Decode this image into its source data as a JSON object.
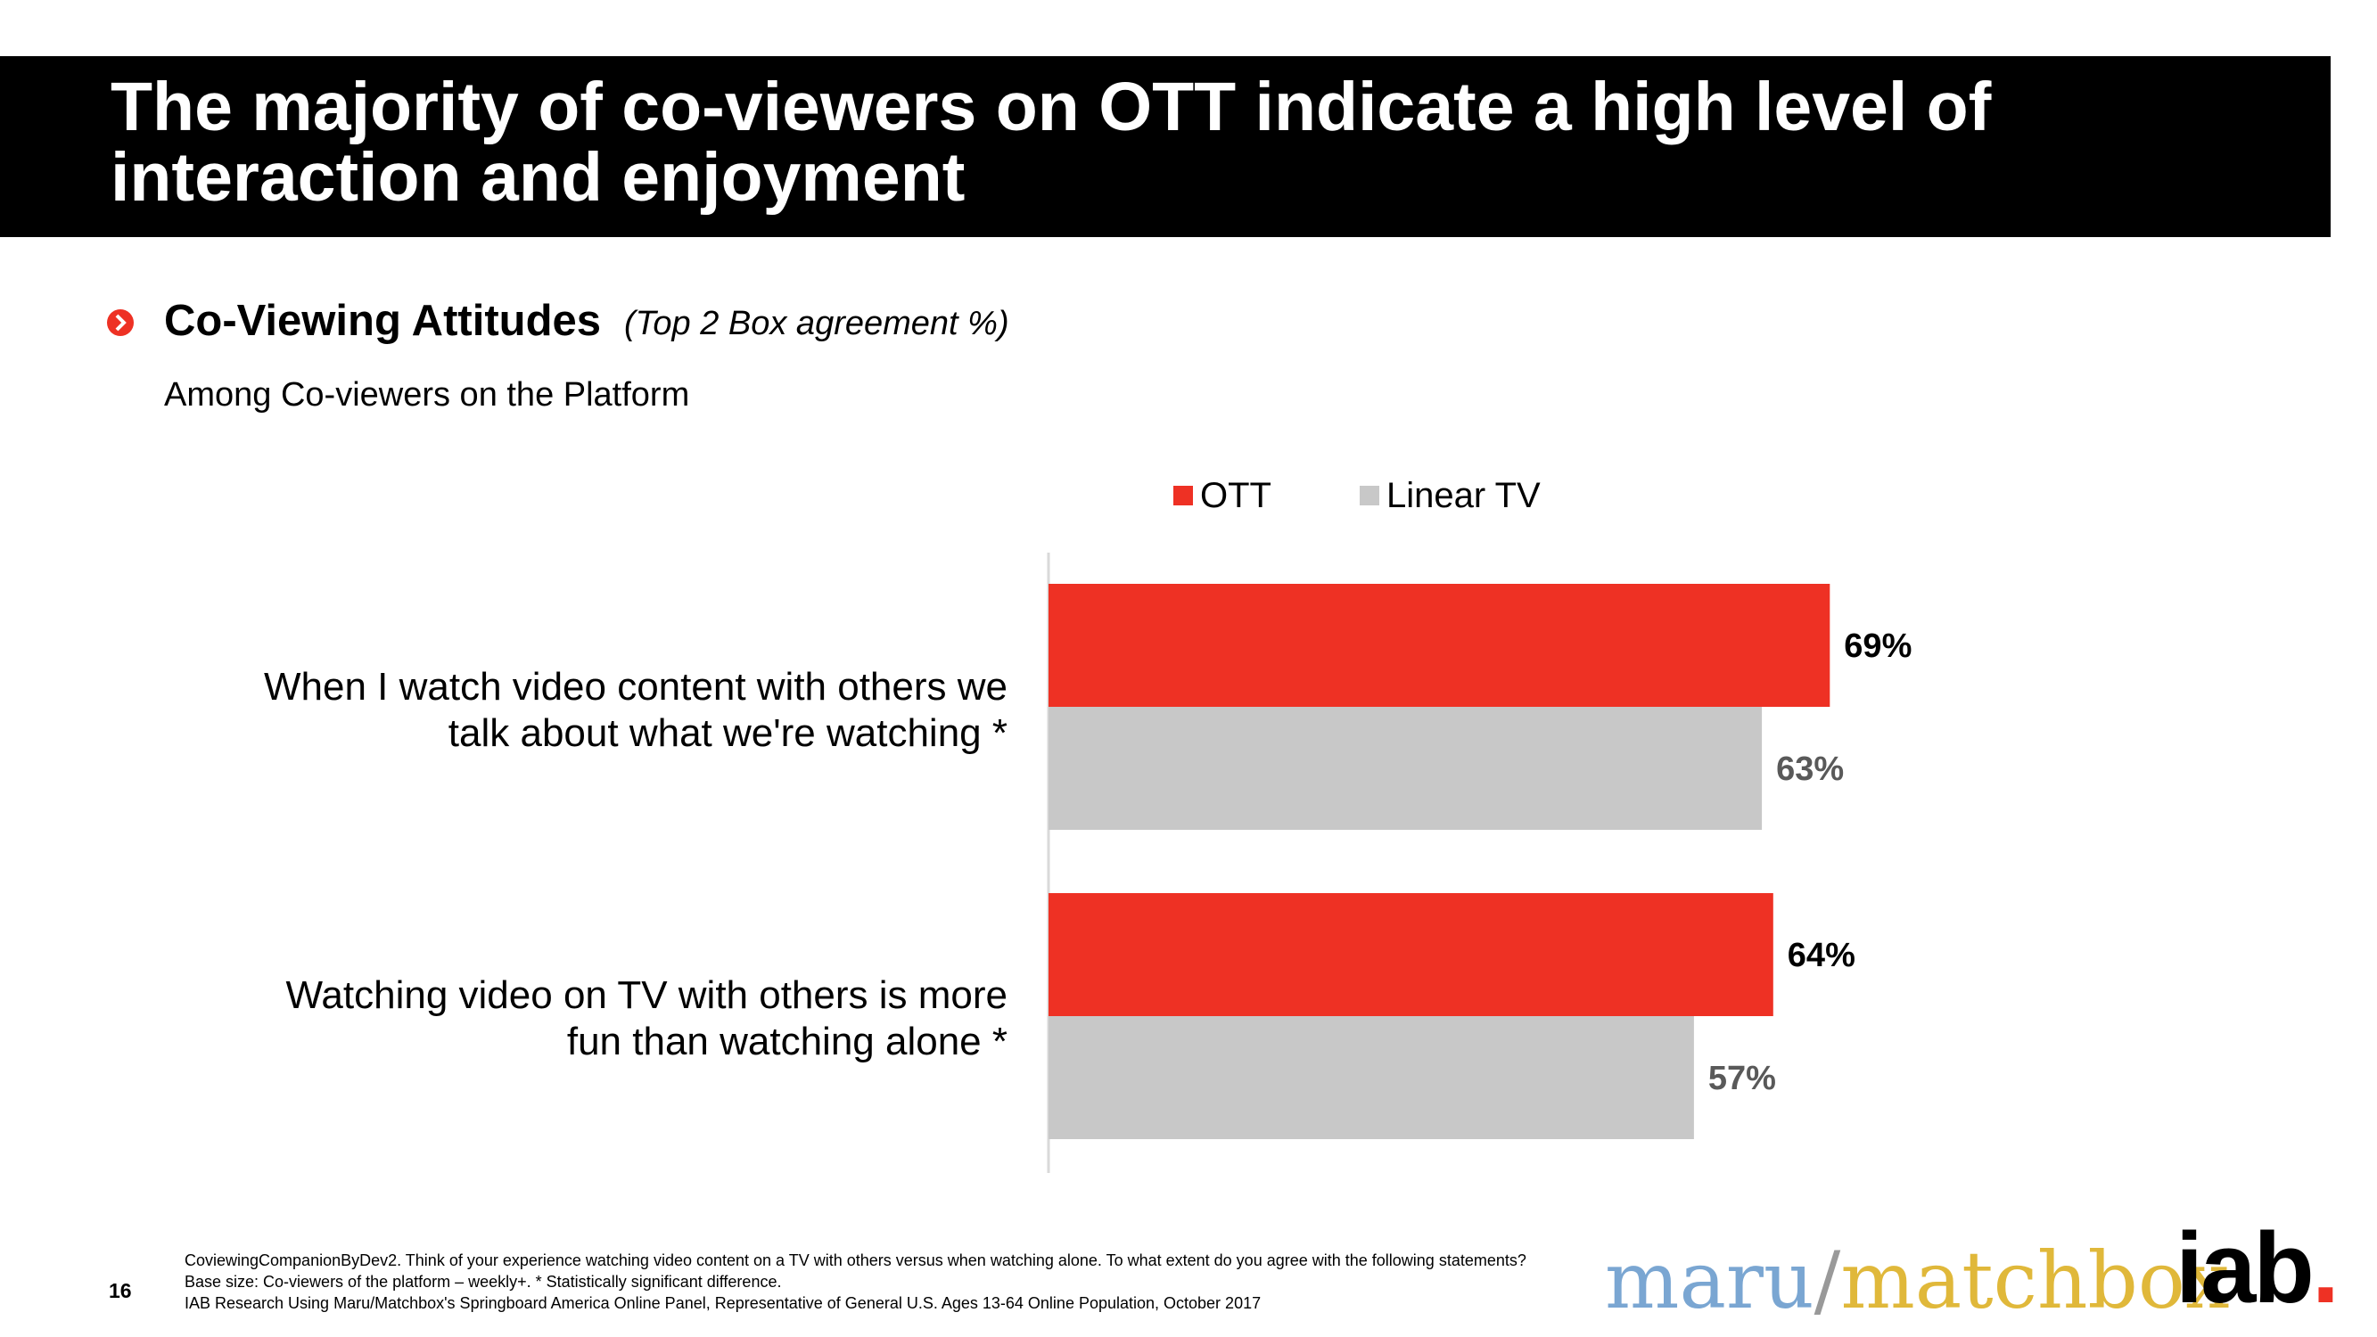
{
  "title": "The majority of co-viewers on OTT indicate a high level of interaction and enjoyment",
  "subtitle": "Co-Viewing Attitudes",
  "subtitle_note": "(Top 2 Box agreement %)",
  "among": "Among Co-viewers on the Platform",
  "colors": {
    "ott": "#ee3124",
    "linear": "#c8c8c8",
    "accent": "#ee3124"
  },
  "chart_data": {
    "type": "bar",
    "orientation": "horizontal",
    "categories": [
      "When I watch video content with others we talk about what we're watching *",
      "Watching video on TV with others is more fun than watching alone *"
    ],
    "category_lines": [
      [
        "When I watch video content with others we",
        "talk about what we're watching *"
      ],
      [
        "Watching video on TV with others is more",
        "fun than watching alone *"
      ]
    ],
    "series": [
      {
        "name": "OTT",
        "values": [
          69,
          64
        ],
        "labels": [
          "69%",
          "64%"
        ]
      },
      {
        "name": "Linear TV",
        "values": [
          63,
          57
        ],
        "labels": [
          "63%",
          "57%"
        ]
      }
    ],
    "xlim": [
      0,
      100
    ],
    "legend": "top-center"
  },
  "footer": {
    "page": "16",
    "notes": [
      "CoviewingCompanionByDev2. Think of your experience watching video content on a TV with others versus when watching alone.  To what extent do you agree with the following statements?",
      "Base size: Co-viewers of the platform – weekly+. * Statistically significant difference.",
      "IAB Research Using Maru/Matchbox's Springboard America Online Panel, Representative of General U.S. Ages 13-64 Online Population, October 2017"
    ],
    "logo_maru": "maru",
    "logo_slash": "/",
    "logo_matchbox": "matchbox",
    "logo_iab": "iab"
  }
}
